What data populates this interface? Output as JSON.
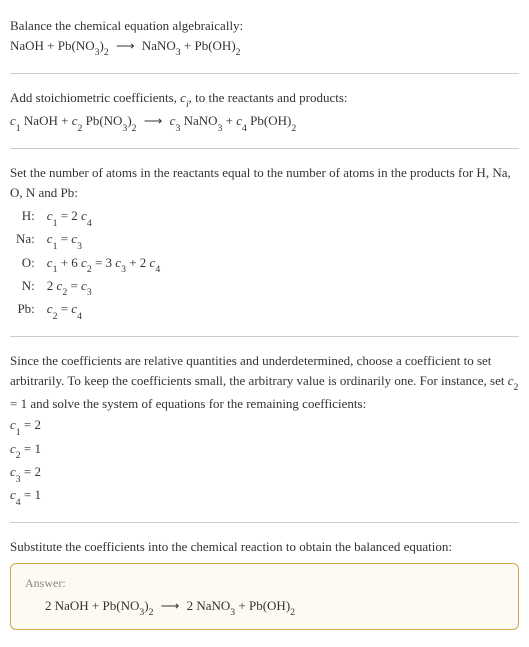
{
  "colors": {
    "text": "#333333",
    "divider": "#cccccc",
    "answer_border": "#d4a84b",
    "answer_bg": "#fdfaf2",
    "answer_label": "#888888",
    "background": "#ffffff"
  },
  "typography": {
    "body_fontsize": 13,
    "sub_scale": 0.75,
    "answer_label_fontsize": 12
  },
  "section1": {
    "line1": "Balance the chemical equation algebraically:",
    "eq_lhs1": "NaOH + Pb(NO",
    "eq_sub1": "3",
    "eq_close1": ")",
    "eq_sub2": "2",
    "arrow": "⟶",
    "eq_rhs1": "NaNO",
    "eq_sub3": "3",
    "eq_plus": " + Pb(OH)",
    "eq_sub4": "2"
  },
  "section2": {
    "line1_a": "Add stoichiometric coefficients, ",
    "ci": "c",
    "ci_sub": "i",
    "line1_b": ", to the reactants and products:",
    "c1": "c",
    "c1s": "1",
    "t1": " NaOH + ",
    "c2": "c",
    "c2s": "2",
    "t2": " Pb(NO",
    "t2sub": "3",
    "t2b": ")",
    "t2sub2": "2",
    "arrow": "⟶",
    "c3": "c",
    "c3s": "3",
    "t3": " NaNO",
    "t3sub": "3",
    "t3b": " + ",
    "c4": "c",
    "c4s": "4",
    "t4": " Pb(OH)",
    "t4sub": "2"
  },
  "section3": {
    "intro": "Set the number of atoms in the reactants equal to the number of atoms in the products for H, Na, O, N and Pb:",
    "rows": [
      {
        "label": "H:",
        "eq_a": "c",
        "eq_as": "1",
        "eq_mid": " = 2 ",
        "eq_b": "c",
        "eq_bs": "4",
        "eq_tail": ""
      },
      {
        "label": "Na:",
        "eq_a": "c",
        "eq_as": "1",
        "eq_mid": " = ",
        "eq_b": "c",
        "eq_bs": "3",
        "eq_tail": ""
      },
      {
        "label": "O:",
        "eq_a": "c",
        "eq_as": "1",
        "eq_mid": " + 6 ",
        "eq_b": "c",
        "eq_bs": "2",
        "eq_mid2": " = 3 ",
        "eq_c": "c",
        "eq_cs": "3",
        "eq_mid3": " + 2 ",
        "eq_d": "c",
        "eq_ds": "4"
      },
      {
        "label": "N:",
        "eq_pre": "2 ",
        "eq_a": "c",
        "eq_as": "2",
        "eq_mid": " = ",
        "eq_b": "c",
        "eq_bs": "3",
        "eq_tail": ""
      },
      {
        "label": "Pb:",
        "eq_a": "c",
        "eq_as": "2",
        "eq_mid": " = ",
        "eq_b": "c",
        "eq_bs": "4",
        "eq_tail": ""
      }
    ]
  },
  "section4": {
    "para_a": "Since the coefficients are relative quantities and underdetermined, choose a coefficient to set arbitrarily. To keep the coefficients small, the arbitrary value is ordinarily one. For instance, set ",
    "cvar": "c",
    "csub": "2",
    "para_b": " = 1 and solve the system of equations for the remaining coefficients:",
    "c1l": "c",
    "c1s": "1",
    "c1v": " = 2",
    "c2l": "c",
    "c2s": "2",
    "c2v": " = 1",
    "c3l": "c",
    "c3s": "3",
    "c3v": " = 2",
    "c4l": "c",
    "c4s": "4",
    "c4v": " = 1"
  },
  "section5": {
    "intro": "Substitute the coefficients into the chemical reaction to obtain the balanced equation:",
    "answer_label": "Answer:",
    "eq_a": "2 NaOH + Pb(NO",
    "eq_s1": "3",
    "eq_b": ")",
    "eq_s2": "2",
    "arrow": "⟶",
    "eq_c": "2 NaNO",
    "eq_s3": "3",
    "eq_d": " + Pb(OH)",
    "eq_s4": "2"
  }
}
